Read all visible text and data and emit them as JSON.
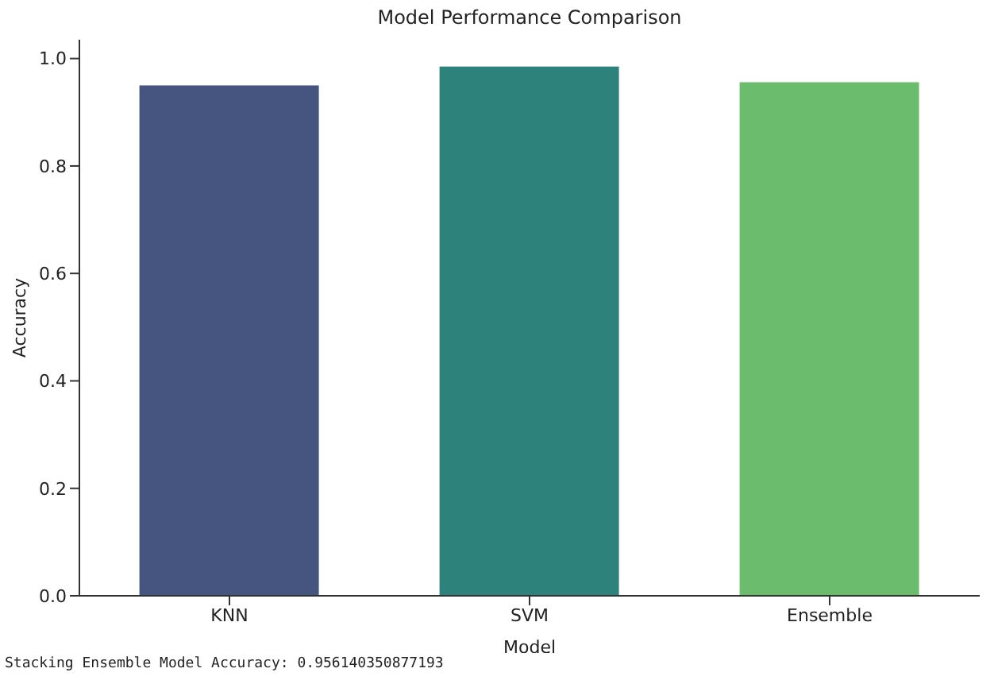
{
  "chart_data": {
    "type": "bar",
    "title": "Model Performance Comparison",
    "xlabel": "Model",
    "ylabel": "Accuracy",
    "categories": [
      "KNN",
      "SVM",
      "Ensemble"
    ],
    "values": [
      0.95,
      0.985,
      0.956
    ],
    "colors": [
      "#46557f",
      "#2e827c",
      "#6bbc6d"
    ],
    "ylim": [
      0,
      1.035
    ],
    "yticks": [
      {
        "value": 0,
        "label": "0.0"
      },
      0.2,
      0.4,
      0.6,
      0.8,
      {
        "value": 1,
        "label": "1.0"
      }
    ],
    "annotations": [
      "Stacking Ensemble Model Accuracy: 0.956140350877193"
    ]
  }
}
